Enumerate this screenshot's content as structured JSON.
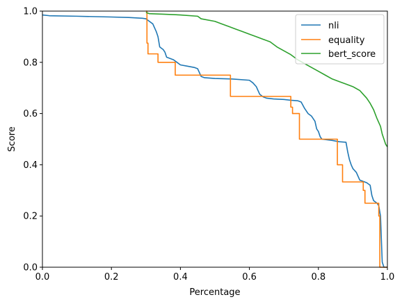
{
  "chart_data": {
    "type": "line",
    "xlabel": "Percentage",
    "ylabel": "Score",
    "xlim": [
      0,
      1
    ],
    "ylim": [
      0,
      1
    ],
    "xticks": [
      "0.0",
      "0.2",
      "0.4",
      "0.6",
      "0.8",
      "1.0"
    ],
    "yticks": [
      "0.0",
      "0.2",
      "0.4",
      "0.6",
      "0.8",
      "1.0"
    ],
    "grid": false,
    "legend_position": "top-right",
    "series": [
      {
        "name": "nli",
        "color": "#1f77b4",
        "step": false,
        "points": [
          [
            0.0,
            0.985
          ],
          [
            0.02,
            0.982
          ],
          [
            0.1,
            0.98
          ],
          [
            0.2,
            0.977
          ],
          [
            0.25,
            0.975
          ],
          [
            0.29,
            0.972
          ],
          [
            0.3,
            0.97
          ],
          [
            0.31,
            0.96
          ],
          [
            0.32,
            0.95
          ],
          [
            0.33,
            0.92
          ],
          [
            0.335,
            0.9
          ],
          [
            0.34,
            0.86
          ],
          [
            0.345,
            0.855
          ],
          [
            0.35,
            0.85
          ],
          [
            0.355,
            0.84
          ],
          [
            0.36,
            0.82
          ],
          [
            0.37,
            0.815
          ],
          [
            0.38,
            0.81
          ],
          [
            0.39,
            0.8
          ],
          [
            0.4,
            0.79
          ],
          [
            0.42,
            0.785
          ],
          [
            0.44,
            0.78
          ],
          [
            0.45,
            0.775
          ],
          [
            0.455,
            0.76
          ],
          [
            0.46,
            0.745
          ],
          [
            0.47,
            0.74
          ],
          [
            0.5,
            0.737
          ],
          [
            0.55,
            0.735
          ],
          [
            0.6,
            0.73
          ],
          [
            0.61,
            0.72
          ],
          [
            0.62,
            0.705
          ],
          [
            0.625,
            0.69
          ],
          [
            0.63,
            0.675
          ],
          [
            0.64,
            0.665
          ],
          [
            0.65,
            0.66
          ],
          [
            0.67,
            0.657
          ],
          [
            0.7,
            0.655
          ],
          [
            0.72,
            0.652
          ],
          [
            0.74,
            0.65
          ],
          [
            0.75,
            0.645
          ],
          [
            0.76,
            0.62
          ],
          [
            0.77,
            0.6
          ],
          [
            0.78,
            0.59
          ],
          [
            0.79,
            0.57
          ],
          [
            0.795,
            0.54
          ],
          [
            0.8,
            0.53
          ],
          [
            0.805,
            0.51
          ],
          [
            0.81,
            0.5
          ],
          [
            0.84,
            0.495
          ],
          [
            0.86,
            0.49
          ],
          [
            0.88,
            0.488
          ],
          [
            0.885,
            0.45
          ],
          [
            0.89,
            0.42
          ],
          [
            0.895,
            0.4
          ],
          [
            0.9,
            0.385
          ],
          [
            0.91,
            0.37
          ],
          [
            0.92,
            0.34
          ],
          [
            0.94,
            0.33
          ],
          [
            0.95,
            0.32
          ],
          [
            0.955,
            0.28
          ],
          [
            0.96,
            0.26
          ],
          [
            0.97,
            0.25
          ],
          [
            0.975,
            0.24
          ],
          [
            0.98,
            0.2
          ],
          [
            0.985,
            0.02
          ],
          [
            0.99,
            0.0
          ],
          [
            1.0,
            0.0
          ]
        ]
      },
      {
        "name": "equality",
        "color": "#ff7f0e",
        "step": true,
        "points": [
          [
            0.3,
            1.0
          ],
          [
            0.303,
            0.875
          ],
          [
            0.306,
            0.833
          ],
          [
            0.335,
            0.8
          ],
          [
            0.385,
            0.75
          ],
          [
            0.545,
            0.667
          ],
          [
            0.72,
            0.625
          ],
          [
            0.725,
            0.6
          ],
          [
            0.745,
            0.5
          ],
          [
            0.855,
            0.4
          ],
          [
            0.87,
            0.333
          ],
          [
            0.93,
            0.3
          ],
          [
            0.935,
            0.25
          ],
          [
            0.975,
            0.2
          ],
          [
            0.978,
            0.0
          ],
          [
            1.0,
            0.0
          ]
        ]
      },
      {
        "name": "bert_score",
        "color": "#2ca02c",
        "step": false,
        "points": [
          [
            0.3,
            0.995
          ],
          [
            0.31,
            0.99
          ],
          [
            0.35,
            0.988
          ],
          [
            0.4,
            0.985
          ],
          [
            0.45,
            0.98
          ],
          [
            0.46,
            0.97
          ],
          [
            0.5,
            0.96
          ],
          [
            0.52,
            0.95
          ],
          [
            0.54,
            0.94
          ],
          [
            0.56,
            0.93
          ],
          [
            0.58,
            0.92
          ],
          [
            0.6,
            0.91
          ],
          [
            0.62,
            0.9
          ],
          [
            0.64,
            0.89
          ],
          [
            0.66,
            0.88
          ],
          [
            0.68,
            0.86
          ],
          [
            0.7,
            0.845
          ],
          [
            0.72,
            0.83
          ],
          [
            0.74,
            0.81
          ],
          [
            0.76,
            0.795
          ],
          [
            0.78,
            0.78
          ],
          [
            0.8,
            0.765
          ],
          [
            0.82,
            0.75
          ],
          [
            0.84,
            0.735
          ],
          [
            0.86,
            0.725
          ],
          [
            0.88,
            0.715
          ],
          [
            0.9,
            0.705
          ],
          [
            0.92,
            0.69
          ],
          [
            0.93,
            0.675
          ],
          [
            0.94,
            0.66
          ],
          [
            0.95,
            0.64
          ],
          [
            0.96,
            0.615
          ],
          [
            0.97,
            0.58
          ],
          [
            0.98,
            0.55
          ],
          [
            0.985,
            0.52
          ],
          [
            0.99,
            0.5
          ],
          [
            0.995,
            0.48
          ],
          [
            1.0,
            0.47
          ]
        ]
      }
    ]
  }
}
